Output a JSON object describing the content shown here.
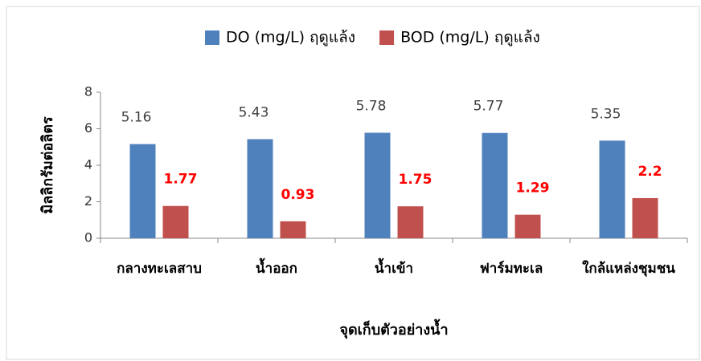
{
  "chart_data": {
    "type": "bar",
    "categories": [
      "กลางทะเลสาบ",
      "น้ำออก",
      "น้ำเข้า",
      "ฟาร์มทะเล",
      "ใกล้แหล่งชุมชน"
    ],
    "series": [
      {
        "name": "DO (mg/L) ฤดูแล้ง",
        "color": "#4f81bd",
        "label_color": "#404040",
        "values": [
          5.16,
          5.43,
          5.78,
          5.77,
          5.35
        ]
      },
      {
        "name": "BOD (mg/L) ฤดูแล้ง",
        "color": "#c0504d",
        "label_color": "#ff0000",
        "values": [
          1.77,
          0.93,
          1.75,
          1.29,
          2.2
        ]
      }
    ],
    "x_label": "จุดเก็บตัวอย่างน้ำ",
    "y_label": "มิลลิกรัมต่อลิตร",
    "ylim": [
      0,
      8
    ],
    "yticks": [
      0,
      2,
      4,
      6,
      8
    ],
    "legend": "top"
  }
}
